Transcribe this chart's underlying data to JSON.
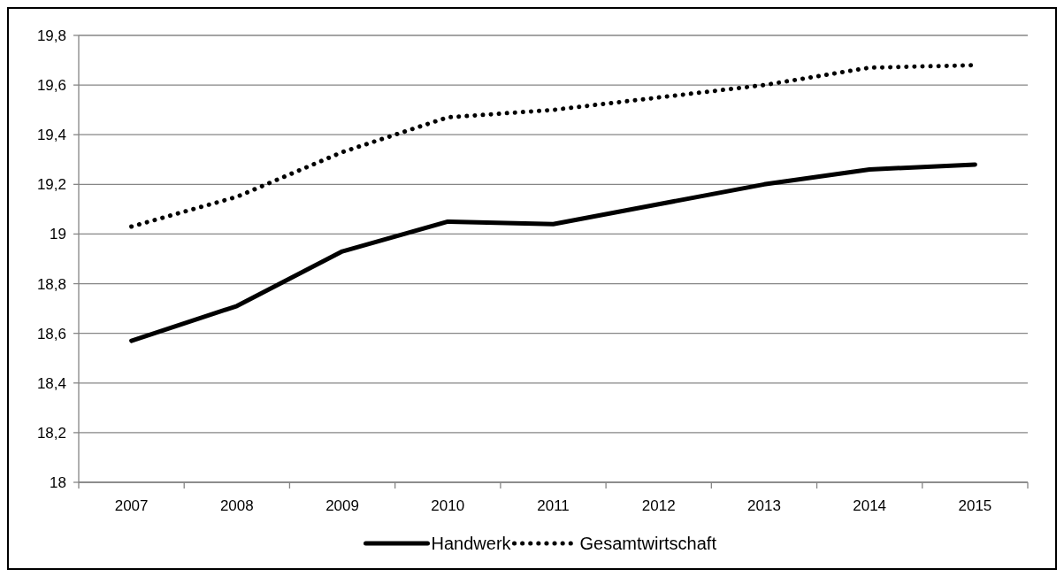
{
  "chart_data": {
    "type": "line",
    "categories": [
      "2007",
      "2008",
      "2009",
      "2010",
      "2011",
      "2012",
      "2013",
      "2014",
      "2015"
    ],
    "series": [
      {
        "name": "Handwerk",
        "color": "#000000",
        "line_style": "solid",
        "values": [
          18.57,
          18.71,
          18.93,
          19.05,
          19.04,
          19.12,
          19.2,
          19.26,
          19.28
        ]
      },
      {
        "name": "Gesamtwirtschaft",
        "color": "#000000",
        "line_style": "dotted",
        "values": [
          19.03,
          19.15,
          19.33,
          19.47,
          19.5,
          19.55,
          19.6,
          19.67,
          19.68
        ]
      }
    ],
    "ylim": [
      18,
      19.8
    ],
    "yticks": [
      18,
      {
        "value": 18.2,
        "label": "18,2"
      },
      {
        "value": 18.4,
        "label": "18,4"
      },
      {
        "value": 18.6,
        "label": "18,6"
      },
      {
        "value": 18.8,
        "label": "18,8"
      },
      19,
      {
        "value": 19.2,
        "label": "19,2"
      },
      {
        "value": 19.4,
        "label": "19,4"
      },
      {
        "value": 19.6,
        "label": "19,6"
      },
      {
        "value": 19.8,
        "label": "19,8"
      }
    ],
    "grid": "y",
    "legend": "bottom",
    "marker": "none"
  }
}
